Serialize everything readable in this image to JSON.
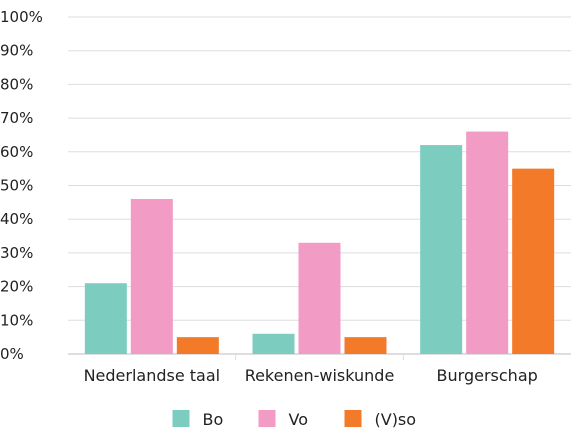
{
  "chart_data": {
    "type": "bar",
    "categories": [
      "Nederlandse taal",
      "Rekenen-wiskunde",
      "Burgerschap"
    ],
    "series": [
      {
        "name": "Bo",
        "color": "#7ccdc0",
        "values": [
          21,
          6,
          62
        ]
      },
      {
        "name": "Vo",
        "color": "#f29bc5",
        "values": [
          46,
          33,
          66
        ]
      },
      {
        "name": "(V)so",
        "color": "#f37a29",
        "values": [
          5,
          5,
          55
        ]
      }
    ],
    "y_ticks": [
      "0%",
      "10%",
      "20%",
      "30%",
      "40%",
      "50%",
      "60%",
      "70%",
      "80%",
      "90%",
      "100%"
    ],
    "ylim": [
      0,
      100
    ],
    "grid": true,
    "legend_position": "bottom-center",
    "title": "",
    "xlabel": "",
    "ylabel": ""
  }
}
